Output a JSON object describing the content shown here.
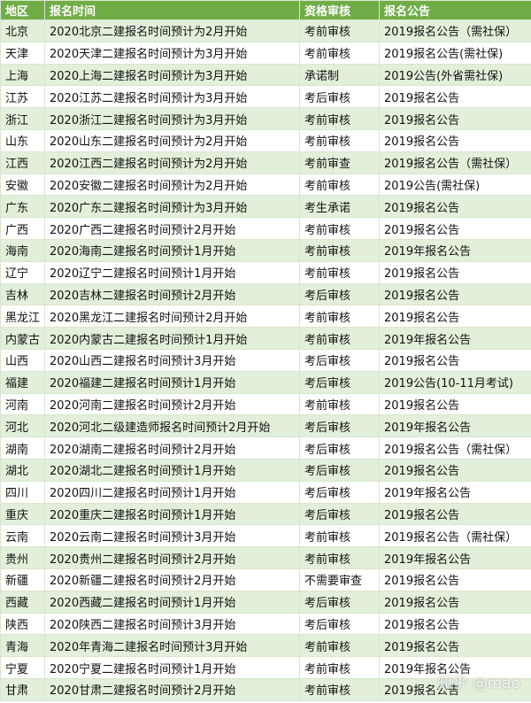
{
  "table": {
    "header": [
      "地区",
      "报名时间",
      "资格审核",
      "报名公告"
    ],
    "rows": [
      [
        "北京",
        "2020北京二建报名时间预计为2月开始",
        "考前审核",
        "2019报名公告（需社保）"
      ],
      [
        "天津",
        "2020天津二建报名时间预计为3月开始",
        "考前审核",
        "2019报名公告(需社保)"
      ],
      [
        "上海",
        "2020上海二建报名时间预计为3月开始",
        "承诺制",
        "2019公告(外省需社保)"
      ],
      [
        "江苏",
        "2020江苏二建报名时间预计为3月开始",
        "考后审核",
        "2019报名公告"
      ],
      [
        "浙江",
        "2020浙江二建报名时间预计为3月开始",
        "考前审核",
        "2019报名公告"
      ],
      [
        "山东",
        "2020山东二建报名时间预计为2月开始",
        "考前审核",
        "2019报名公告"
      ],
      [
        "江西",
        "2020江西二建报名时间预计为2月开始",
        "考前审查",
        "2019报名公告（需社保）"
      ],
      [
        "安徽",
        "2020安徽二建报名时间预计为2月开始",
        "考前审核",
        "2019公告(需社保)"
      ],
      [
        "广东",
        "2020广东二建报名时间预计为3月开始",
        "考生承诺",
        "2019报名公告"
      ],
      [
        "广西",
        "2020广西二建报名时间预计2月开始",
        "考前审核",
        "2019报名公告"
      ],
      [
        "海南",
        "2020海南二建报名时间预计1月开始",
        "考前审核",
        "2019年报名公告"
      ],
      [
        "辽宁",
        "2020辽宁二建报名时间预计1月开始",
        "考前审核",
        "2019报名公告"
      ],
      [
        "吉林",
        "2020吉林二建报名时间预计2月开始",
        "考后审核",
        "2019报名公告"
      ],
      [
        "黑龙江",
        "2020黑龙江二建报名时间预计2月开始",
        "考前审核",
        "2019报名公告"
      ],
      [
        "内蒙古",
        "2020内蒙古二建报名时间预计1月开始",
        "考前审核",
        "2019年报名公告"
      ],
      [
        "山西",
        "2020山西二建报名时间预计3月开始",
        "考后审核",
        "2019报名公告"
      ],
      [
        "福建",
        "2020福建二建报名时间预计1月开始",
        "考后审核",
        "2019公告(10-11月考试)"
      ],
      [
        "河南",
        "2020河南二建报名时间预计2月开始",
        "考前审核",
        "2019报名公告"
      ],
      [
        "河北",
        "2020河北二级建造师报名时间预计2月开始",
        "考后审核",
        "2019年报名公告"
      ],
      [
        "湖南",
        "2020湖南二建报名时间预计2月开始",
        "考后审核",
        "2019报名公告（需社保）"
      ],
      [
        "湖北",
        "2020湖北二建报名时间预计1月开始",
        "考后审核",
        "2019报名公告"
      ],
      [
        "四川",
        "2020四川二建报名时间预计1月开始",
        "考后审核",
        "2019年报名公告"
      ],
      [
        "重庆",
        "2020重庆二建报名时间预计1月开始",
        "考后审核",
        "2019报名公告"
      ],
      [
        "云南",
        "2020云南二建报名时间预计3月开始",
        "考前审核",
        "2019报名公告（需社保）"
      ],
      [
        "贵州",
        "2020贵州二建报名时间预计2月开始",
        "考前审核",
        "2019年报名公告"
      ],
      [
        "新疆",
        "2020新疆二建报名时间预计2月开始",
        "不需要审查",
        "2019报名公告"
      ],
      [
        "西藏",
        "2020西藏二建报名时间预计1月开始",
        "考后审核",
        "2019报名公告"
      ],
      [
        "陕西",
        "2020陕西二建报名时间预计3月开始",
        "考后审核",
        "2019报名公告"
      ],
      [
        "青海",
        "2020年青海二建报名时间预计3月开始",
        "考前审核",
        "2019报名公告"
      ],
      [
        "宁夏",
        "2020宁夏二建报名时间预计1月开始",
        "考前审核",
        "2019年报名公告"
      ],
      [
        "甘肃",
        "2020甘肃二建报名时间预计2月开始",
        "考前审核",
        "2019报名公告"
      ]
    ]
  },
  "watermark": "知乎 @mao"
}
